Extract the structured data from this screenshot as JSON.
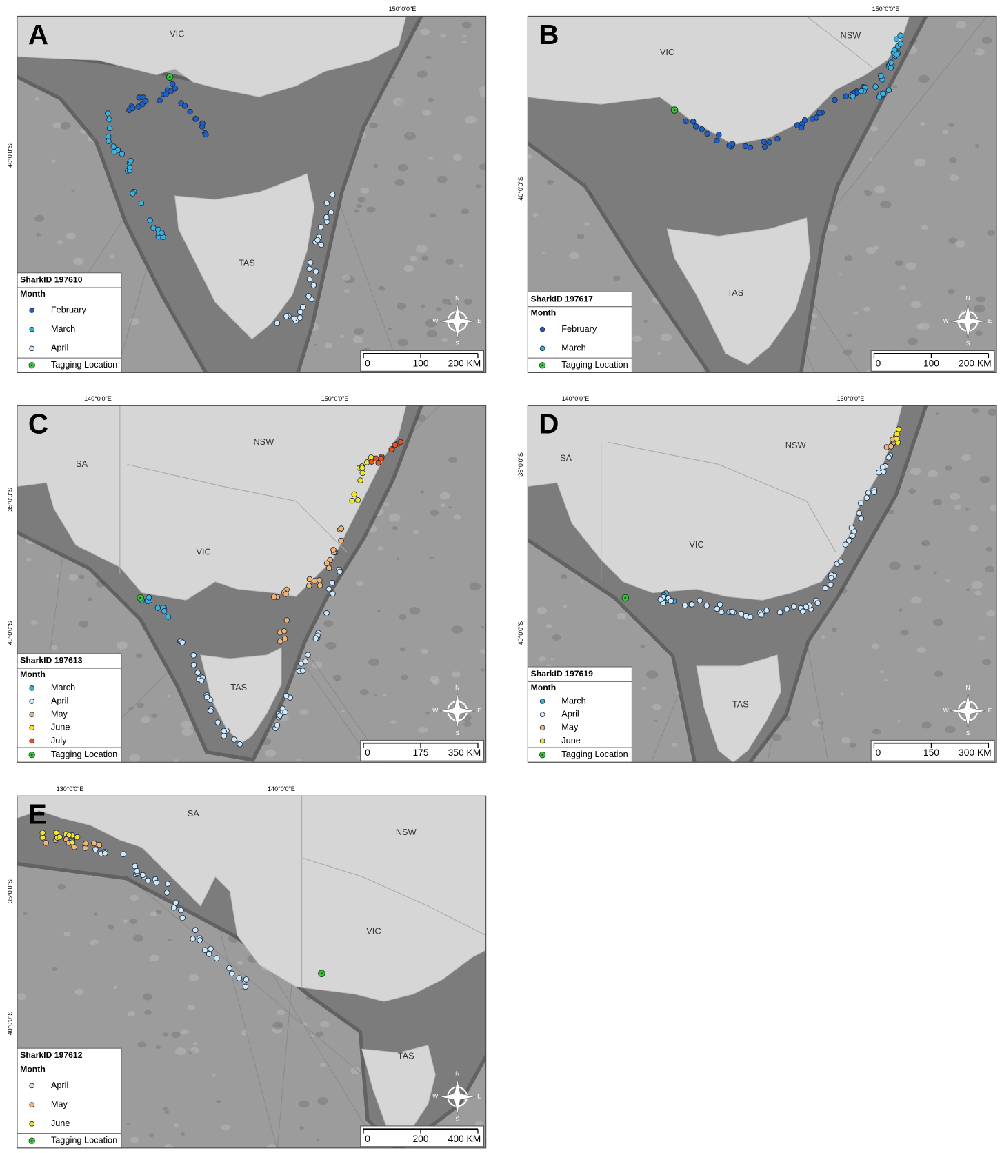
{
  "compass_labels": [
    "N",
    "E",
    "S",
    "W"
  ],
  "panels": [
    {
      "letter": "A",
      "shark_id": "SharkID 197610",
      "legend_title": "Month",
      "legend": [
        {
          "label": "February",
          "color": "#1d5fc4"
        },
        {
          "label": "March",
          "color": "#39b2e0"
        },
        {
          "label": "April",
          "color": "#cfe8f7"
        },
        {
          "label": "Tagging Location",
          "color": "#3cc43c"
        }
      ],
      "scale": [
        "0",
        "100",
        "200 KM"
      ],
      "regions": [
        "VIC",
        "TAS"
      ],
      "lon_labels": [
        "150°0'0\"E"
      ],
      "lat_labels": [
        "40°0'0\"S"
      ]
    },
    {
      "letter": "B",
      "shark_id": "SharkID 197617",
      "legend_title": "Month",
      "legend": [
        {
          "label": "February",
          "color": "#1d5fc4"
        },
        {
          "label": "March",
          "color": "#39b2e0"
        },
        {
          "label": "Tagging Location",
          "color": "#3cc43c"
        }
      ],
      "scale": [
        "0",
        "100",
        "200 KM"
      ],
      "regions": [
        "VIC",
        "NSW",
        "TAS"
      ],
      "lon_labels": [
        "150°0'0\"E"
      ],
      "lat_labels": [
        "40°0'0\"S"
      ]
    },
    {
      "letter": "C",
      "shark_id": "SharkID 197613",
      "legend_title": "Month",
      "legend": [
        {
          "label": "March",
          "color": "#39b2e0"
        },
        {
          "label": "April",
          "color": "#cfe8f7"
        },
        {
          "label": "May",
          "color": "#f2b272"
        },
        {
          "label": "June",
          "color": "#f5e42c"
        },
        {
          "label": "July",
          "color": "#e8521e"
        },
        {
          "label": "Tagging Location",
          "color": "#3cc43c"
        }
      ],
      "scale": [
        "0",
        "175",
        "350 KM"
      ],
      "regions": [
        "SA",
        "NSW",
        "VIC",
        "TAS"
      ],
      "lon_labels": [
        "140°0'0\"E",
        "150°0'0\"E"
      ],
      "lat_labels": [
        "35°0'0\"S",
        "40°0'0\"S"
      ]
    },
    {
      "letter": "D",
      "shark_id": "SharkID 197619",
      "legend_title": "Month",
      "legend": [
        {
          "label": "March",
          "color": "#39b2e0"
        },
        {
          "label": "April",
          "color": "#cfe8f7"
        },
        {
          "label": "May",
          "color": "#f2b272"
        },
        {
          "label": "June",
          "color": "#f5e42c"
        },
        {
          "label": "Tagging Location",
          "color": "#3cc43c"
        }
      ],
      "scale": [
        "0",
        "150",
        "300 KM"
      ],
      "regions": [
        "SA",
        "NSW",
        "VIC",
        "TAS"
      ],
      "lon_labels": [
        "140°0'0\"E",
        "150°0'0\"E"
      ],
      "lat_labels": [
        "35°0'0\"S",
        "40°0'0\"S"
      ]
    },
    {
      "letter": "E",
      "shark_id": "SharkID 197612",
      "legend_title": "Month",
      "legend": [
        {
          "label": "April",
          "color": "#cfe8f7"
        },
        {
          "label": "May",
          "color": "#f2b272"
        },
        {
          "label": "June",
          "color": "#f5e42c"
        },
        {
          "label": "Tagging Location",
          "color": "#3cc43c"
        }
      ],
      "scale": [
        "0",
        "200",
        "400 KM"
      ],
      "regions": [
        "SA",
        "NSW",
        "VIC",
        "TAS"
      ],
      "lon_labels": [
        "130°0'0\"E",
        "140°0'0\"E"
      ],
      "lat_labels": [
        "35°0'0\"S",
        "40°0'0\"S"
      ]
    }
  ]
}
